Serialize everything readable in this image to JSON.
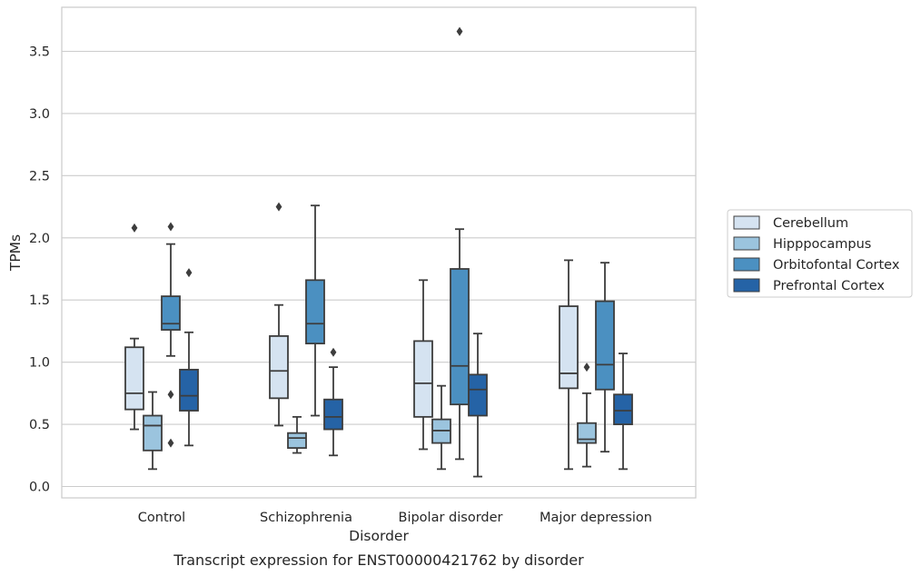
{
  "chart_data": {
    "type": "box",
    "caption": "Transcript expression for ENST00000421762 by disorder",
    "xlabel": "Disorder",
    "ylabel": "TPMs",
    "ylim": [
      -0.09,
      3.86
    ],
    "yticks": [
      0.0,
      0.5,
      1.0,
      1.5,
      2.0,
      2.5,
      3.0,
      3.5
    ],
    "ytick_labels": [
      "0.0",
      "0.5",
      "1.0",
      "1.5",
      "2.0",
      "2.5",
      "3.0",
      "3.5"
    ],
    "grid": "horizontal",
    "legend_position": "right",
    "categories": [
      "Control",
      "Schizophrenia",
      "Bipolar disorder",
      "Major depression"
    ],
    "series": [
      {
        "name": "Cerebellum",
        "color": "#d5e3f1",
        "boxes": [
          {
            "whisker_low": 0.46,
            "q1": 0.62,
            "median": 0.75,
            "q3": 1.12,
            "whisker_high": 1.19,
            "outliers": [
              2.08
            ]
          },
          {
            "whisker_low": 0.49,
            "q1": 0.71,
            "median": 0.93,
            "q3": 1.21,
            "whisker_high": 1.46,
            "outliers": [
              2.25
            ]
          },
          {
            "whisker_low": 0.3,
            "q1": 0.56,
            "median": 0.83,
            "q3": 1.17,
            "whisker_high": 1.66,
            "outliers": []
          },
          {
            "whisker_low": 0.14,
            "q1": 0.79,
            "median": 0.91,
            "q3": 1.45,
            "whisker_high": 1.82,
            "outliers": []
          }
        ]
      },
      {
        "name": "Hipppocampus",
        "color": "#9bc4de",
        "boxes": [
          {
            "whisker_low": 0.14,
            "q1": 0.29,
            "median": 0.49,
            "q3": 0.57,
            "whisker_high": 0.76,
            "outliers": []
          },
          {
            "whisker_low": 0.27,
            "q1": 0.31,
            "median": 0.39,
            "q3": 0.43,
            "whisker_high": 0.56,
            "outliers": []
          },
          {
            "whisker_low": 0.14,
            "q1": 0.35,
            "median": 0.45,
            "q3": 0.54,
            "whisker_high": 0.81,
            "outliers": []
          },
          {
            "whisker_low": 0.16,
            "q1": 0.35,
            "median": 0.38,
            "q3": 0.51,
            "whisker_high": 0.75,
            "outliers": [
              0.96
            ]
          }
        ]
      },
      {
        "name": "Orbitofontal Cortex",
        "color": "#4b90c1",
        "boxes": [
          {
            "whisker_low": 1.05,
            "q1": 1.26,
            "median": 1.31,
            "q3": 1.53,
            "whisker_high": 1.95,
            "outliers": [
              2.09,
              0.74,
              0.35
            ]
          },
          {
            "whisker_low": 0.57,
            "q1": 1.15,
            "median": 1.31,
            "q3": 1.66,
            "whisker_high": 2.26,
            "outliers": []
          },
          {
            "whisker_low": 0.22,
            "q1": 0.66,
            "median": 0.97,
            "q3": 1.75,
            "whisker_high": 2.07,
            "outliers": [
              3.66
            ]
          },
          {
            "whisker_low": 0.28,
            "q1": 0.78,
            "median": 0.98,
            "q3": 1.49,
            "whisker_high": 1.8,
            "outliers": []
          }
        ]
      },
      {
        "name": "Prefrontal Cortex",
        "color": "#2563a6",
        "boxes": [
          {
            "whisker_low": 0.33,
            "q1": 0.61,
            "median": 0.73,
            "q3": 0.94,
            "whisker_high": 1.24,
            "outliers": [
              1.72
            ]
          },
          {
            "whisker_low": 0.25,
            "q1": 0.46,
            "median": 0.56,
            "q3": 0.7,
            "whisker_high": 0.96,
            "outliers": [
              1.08
            ]
          },
          {
            "whisker_low": 0.08,
            "q1": 0.57,
            "median": 0.78,
            "q3": 0.9,
            "whisker_high": 1.23,
            "outliers": []
          },
          {
            "whisker_low": 0.14,
            "q1": 0.5,
            "median": 0.61,
            "q3": 0.74,
            "whisker_high": 1.07,
            "outliers": []
          }
        ]
      }
    ]
  }
}
